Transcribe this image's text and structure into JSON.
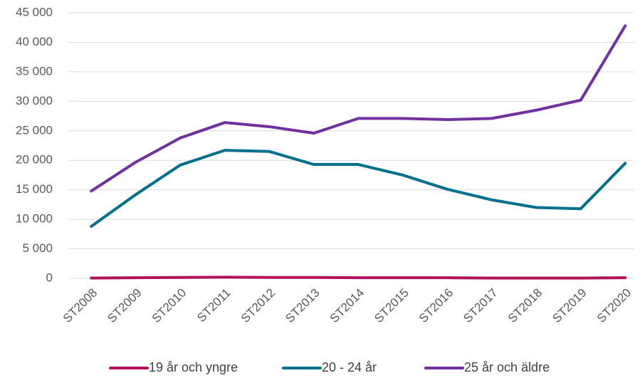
{
  "chart_data": {
    "type": "line",
    "categories": [
      "ST2008",
      "ST2009",
      "ST2010",
      "ST2011",
      "ST2012",
      "ST2013",
      "ST2014",
      "ST2015",
      "ST2016",
      "ST2017",
      "ST2018",
      "ST2019",
      "ST2020"
    ],
    "series": [
      {
        "name": "19 år och yngre",
        "color": "#b3105e",
        "values": [
          50,
          100,
          150,
          200,
          150,
          150,
          100,
          100,
          100,
          50,
          50,
          50,
          100
        ]
      },
      {
        "name": "20 - 24 år",
        "color": "#00708c",
        "values": [
          8800,
          14200,
          19200,
          21700,
          21500,
          19300,
          19300,
          17500,
          15100,
          13300,
          12000,
          11800,
          19500
        ]
      },
      {
        "name": "25 år och äldre",
        "color": "#7030a0",
        "values": [
          14800,
          19700,
          23800,
          26400,
          25700,
          24600,
          27100,
          27100,
          26900,
          27100,
          28500,
          30200,
          42800
        ]
      }
    ],
    "ylim": [
      0,
      45000
    ],
    "yticks": [
      0,
      {
        "value": 5000,
        "label": "5 000"
      },
      {
        "value": 10000,
        "label": "10 000"
      },
      {
        "value": 15000,
        "label": "15 000"
      },
      {
        "value": 20000,
        "label": "20 000"
      },
      {
        "value": 25000,
        "label": "25 000"
      },
      {
        "value": 30000,
        "label": "30 000"
      },
      {
        "value": 35000,
        "label": "35 000"
      },
      {
        "value": 40000,
        "label": "40 000"
      },
      {
        "value": 45000,
        "label": "45 000"
      }
    ],
    "grid": true,
    "legend": "bottom"
  }
}
